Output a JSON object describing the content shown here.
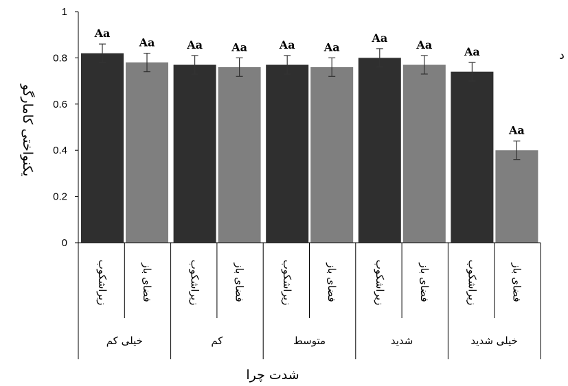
{
  "chart_data": {
    "type": "bar",
    "title": "",
    "xlabel": "شدت چرا",
    "ylabel": "یکنواختی کامارگو",
    "ylim": [
      0,
      1
    ],
    "yticks": [
      "0",
      "0.2",
      "0.4",
      "0.6",
      "0.8",
      "1"
    ],
    "grid": false,
    "legend": "none",
    "groups": [
      "خیلی کم",
      "کم",
      "متوسط",
      "شدید",
      "خیلی شدید"
    ],
    "subcategories": [
      "زیراشکوب",
      "فضای باز"
    ],
    "series": [
      {
        "values": [
          0.82,
          0.77,
          0.77,
          0.8,
          0.74
        ],
        "errors": [
          0.04,
          0.04,
          0.04,
          0.04,
          0.04
        ],
        "labels": [
          "Aa",
          "Aa",
          "Aa",
          "Aa",
          "Aa"
        ],
        "color": "#2f2f2f"
      },
      {
        "values": [
          0.78,
          0.76,
          0.76,
          0.77,
          0.4
        ],
        "errors": [
          0.04,
          0.04,
          0.04,
          0.04,
          0.04
        ],
        "labels": [
          "Aa",
          "Aa",
          "Aa",
          "Aa",
          "Aa"
        ],
        "color": "#7f7f7f"
      }
    ],
    "corner_label": "د"
  }
}
